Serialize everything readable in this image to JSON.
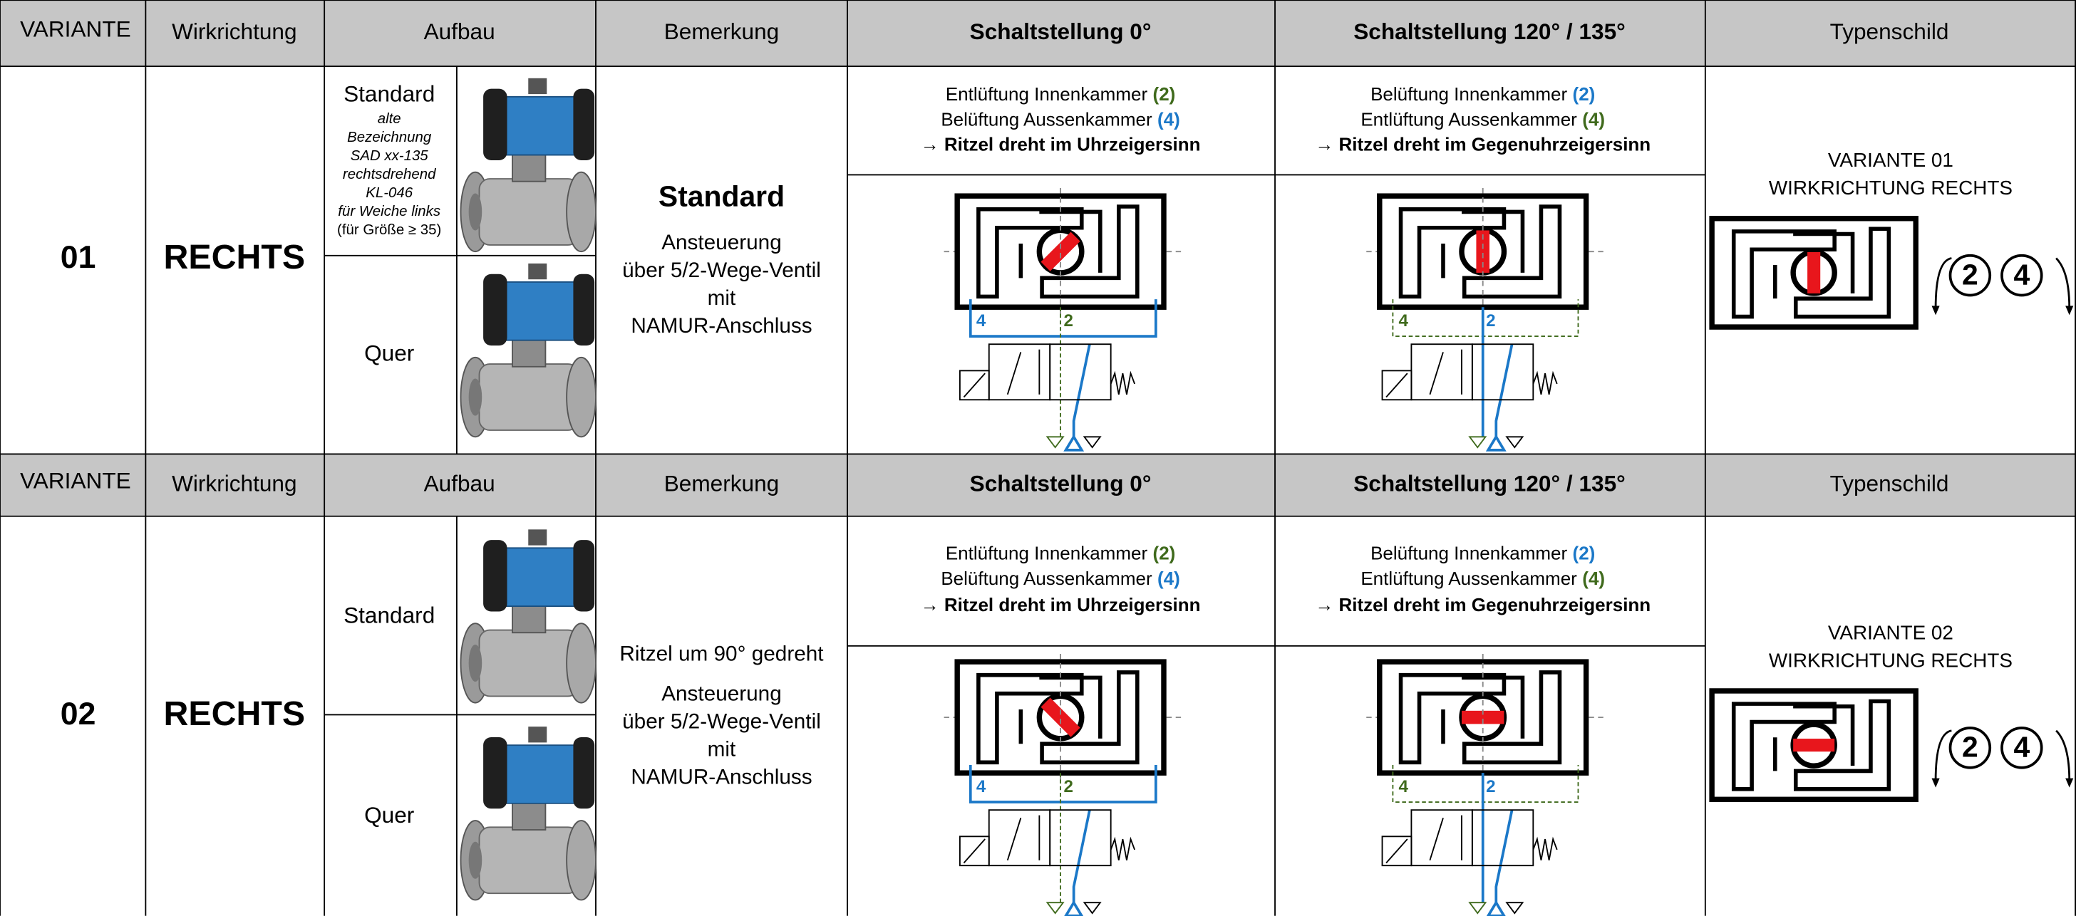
{
  "sections": [
    {
      "header": {
        "variante": "VARIANTE",
        "wirkrichtung": "Wirkrichtung",
        "aufbau": "Aufbau",
        "bemerkung": "Bemerkung",
        "schalt0": "Schaltstellung 0°",
        "schalt120": "Schaltstellung 120° / 135°",
        "typenschild": "Typenschild"
      },
      "number": "01",
      "direction": "RECHTS",
      "aufbau": {
        "standard": "Standard",
        "notes": [
          "alte",
          "Bezeichnung",
          "SAD xx-135",
          "rechtsdrehend",
          "KL-046",
          "für Weiche links"
        ],
        "size_note": "(für Größe ≥ 35)",
        "quer": "Quer"
      },
      "bemerkung": {
        "title": "Standard",
        "lines": [
          "Ansteuerung",
          "über 5/2-Wege-Ventil",
          "mit",
          "NAMUR-Anschluss"
        ]
      },
      "schalt0": {
        "lines": [
          {
            "text": "Entlüftung Innenkammer",
            "port": "(2)"
          },
          {
            "text": "Belüftung Aussenkammer",
            "port": "(4)"
          }
        ],
        "result": "→ Ritzel dreht im Uhrzeigersinn",
        "port_a": "4",
        "port_b": "2"
      },
      "schalt120": {
        "lines": [
          {
            "text": "Belüftung Innenkammer",
            "port": "(2)"
          },
          {
            "text": "Entlüftung Aussenkammer",
            "port": "(4)"
          }
        ],
        "result": "→ Ritzel dreht im Gegenuhrzeigersinn",
        "port_a": "4",
        "port_b": "2"
      },
      "typenschild": {
        "line1": "VARIANTE 01",
        "line2": "WIRKRICHTUNG RECHTS",
        "ports": [
          "2",
          "4"
        ]
      }
    },
    {
      "header": {
        "variante": "VARIANTE",
        "wirkrichtung": "Wirkrichtung",
        "aufbau": "Aufbau",
        "bemerkung": "Bemerkung",
        "schalt0": "Schaltstellung 0°",
        "schalt120": "Schaltstellung 120° / 135°",
        "typenschild": "Typenschild"
      },
      "number": "02",
      "direction": "RECHTS",
      "aufbau": {
        "standard": "Standard",
        "quer": "Quer"
      },
      "bemerkung": {
        "lines": [
          "Ritzel um 90° gedreht",
          "Ansteuerung",
          "über 5/2-Wege-Ventil",
          "mit",
          "NAMUR-Anschluss"
        ]
      },
      "schalt0": {
        "lines": [
          {
            "text": "Entlüftung Innenkammer",
            "port": "(2)"
          },
          {
            "text": "Belüftung Aussenkammer",
            "port": "(4)"
          }
        ],
        "result": "→ Ritzel dreht im Uhrzeigersinn",
        "port_a": "4",
        "port_b": "2"
      },
      "schalt120": {
        "lines": [
          {
            "text": "Belüftung Innenkammer",
            "port": "(2)"
          },
          {
            "text": "Entlüftung Aussenkammer",
            "port": "(4)"
          }
        ],
        "result": "→ Ritzel dreht im Gegenuhrzeigersinn",
        "port_a": "4",
        "port_b": "2"
      },
      "typenschild": {
        "line1": "VARIANTE 02",
        "line2": "WIRKRICHTUNG RECHTS",
        "ports": [
          "2",
          "4"
        ]
      }
    }
  ]
}
